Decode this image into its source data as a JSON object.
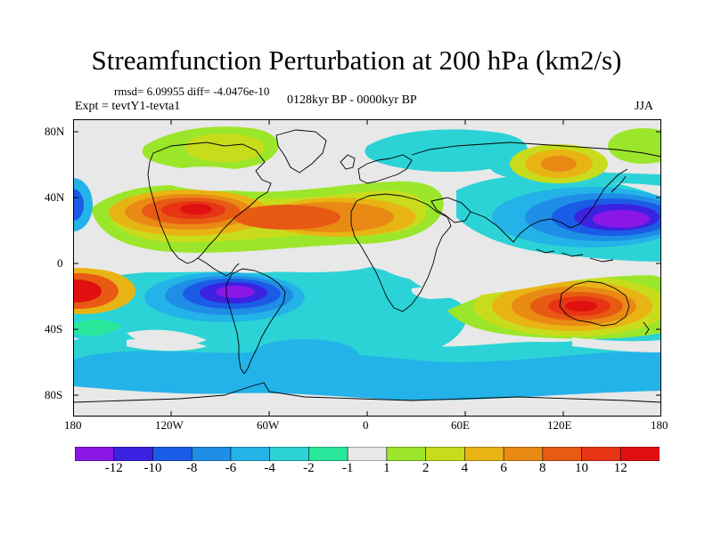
{
  "header": {
    "title": "Streamfunction Perturbation at 200 hPa (km2/s)",
    "stats": "rmsd= 6.09955 diff= -4.0476e-10",
    "experiment": "Expt = tevtY1-tevta1",
    "period": "0128kyr BP - 0000kyr BP",
    "season": "JJA"
  },
  "axes": {
    "lat_labels": [
      "80N",
      "40N",
      "0",
      "40S",
      "80S"
    ],
    "lon_labels": [
      "180",
      "120W",
      "60W",
      "0",
      "60E",
      "120E",
      "180"
    ]
  },
  "colorbar": {
    "labels": [
      "-12",
      "-10",
      "-8",
      "-6",
      "-4",
      "-2",
      "-1",
      "1",
      "2",
      "4",
      "6",
      "8",
      "10",
      "12"
    ],
    "colors": [
      "#8a17e6",
      "#3a22e0",
      "#1b5ce6",
      "#1f8ee6",
      "#23b3e8",
      "#2cd3d6",
      "#28e69a",
      "#e8e8e8",
      "#9be62a",
      "#c8dc1c",
      "#e8b414",
      "#e88a14",
      "#e85a14",
      "#e63414",
      "#e01010"
    ]
  },
  "map_colors": {
    "background": "#e8e8e8",
    "land_outline": "#000000"
  }
}
